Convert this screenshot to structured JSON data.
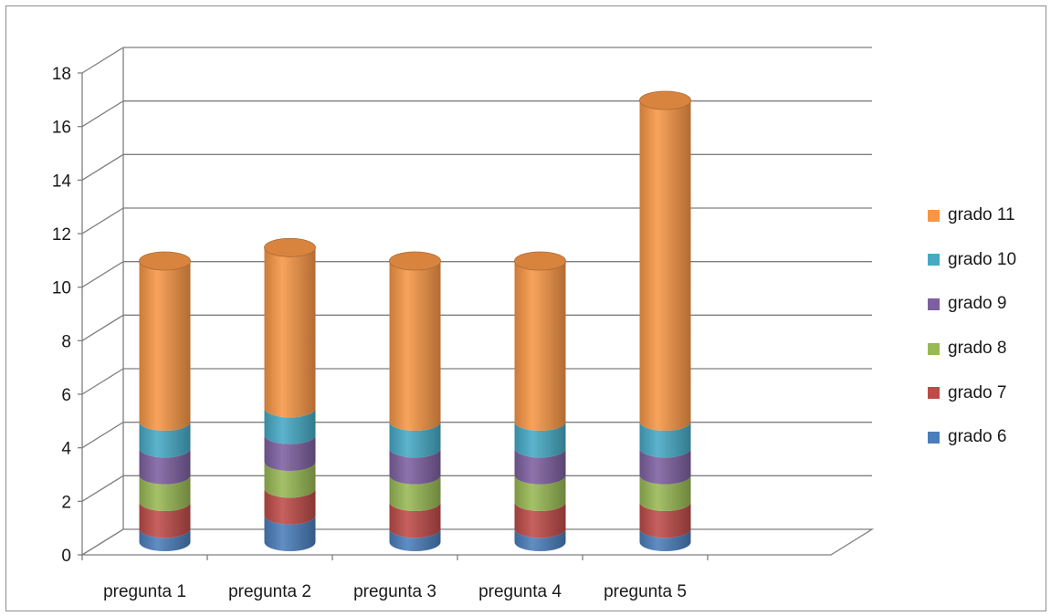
{
  "chart_data": {
    "type": "bar",
    "stacked": true,
    "style": "3d-cylinder",
    "categories": [
      "pregunta 1",
      "pregunta 2",
      "pregunta 3",
      "pregunta 4",
      "pregunta 5"
    ],
    "series": [
      {
        "name": "grado 6",
        "color": "#4a7ebb",
        "values": [
          0.5,
          1,
          0.5,
          0.5,
          0.5
        ]
      },
      {
        "name": "grado 7",
        "color": "#be4b48",
        "values": [
          1,
          1,
          1,
          1,
          1
        ]
      },
      {
        "name": "grado 8",
        "color": "#98b954",
        "values": [
          1,
          1,
          1,
          1,
          1
        ]
      },
      {
        "name": "grado 9",
        "color": "#7d60a0",
        "values": [
          1,
          1,
          1,
          1,
          1
        ]
      },
      {
        "name": "grado 10",
        "color": "#46aac5",
        "values": [
          1,
          1,
          1,
          1,
          1
        ]
      },
      {
        "name": "grado 11",
        "color": "#f79646",
        "values": [
          6,
          6,
          6,
          6,
          12
        ]
      }
    ],
    "ylim": [
      0,
      18
    ],
    "yticks": [
      "0",
      "2",
      "4",
      "6",
      "8",
      "10",
      "12",
      "14",
      "16",
      "18"
    ],
    "grid": true,
    "legend_position": "right",
    "title": "",
    "xlabel": "",
    "ylabel": ""
  }
}
